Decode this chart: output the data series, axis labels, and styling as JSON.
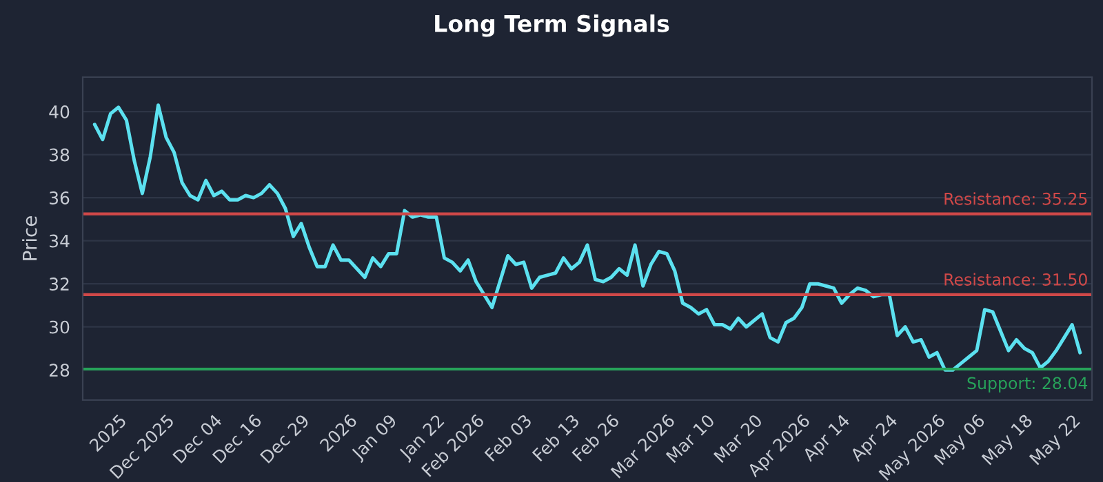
{
  "chart_data": {
    "type": "line",
    "title": "Long Term Signals",
    "ylabel": "Price",
    "series": [
      {
        "color": "#5ce1f0",
        "values": [
          39.4,
          38.7,
          39.9,
          40.2,
          39.6,
          37.7,
          36.2,
          37.9,
          40.3,
          38.8,
          38.1,
          36.7,
          36.1,
          35.9,
          36.8,
          36.1,
          36.3,
          35.9,
          35.9,
          36.1,
          36.0,
          36.2,
          36.6,
          36.2,
          35.5,
          34.2,
          34.8,
          33.7,
          32.8,
          32.8,
          33.8,
          33.1,
          33.1,
          32.7,
          32.3,
          33.2,
          32.8,
          33.4,
          33.4,
          35.4,
          35.1,
          35.2,
          35.1,
          35.1,
          33.2,
          33.0,
          32.6,
          33.1,
          32.1,
          31.5,
          30.9,
          32.1,
          33.3,
          32.9,
          33.0,
          31.8,
          32.3,
          32.4,
          32.5,
          33.2,
          32.7,
          33.0,
          33.8,
          32.2,
          32.1,
          32.3,
          32.7,
          32.4,
          33.8,
          31.9,
          32.9,
          33.5,
          33.4,
          32.6,
          31.1,
          30.9,
          30.6,
          30.8,
          30.1,
          30.1,
          29.9,
          30.4,
          30.0,
          30.3,
          30.6,
          29.5,
          29.3,
          30.2,
          30.4,
          30.9,
          32.0,
          32.0,
          31.9,
          31.8,
          31.1,
          31.5,
          31.8,
          31.7,
          31.4,
          31.5,
          31.5,
          29.6,
          30.0,
          29.3,
          29.4,
          28.6,
          28.8,
          28.0,
          28.0,
          28.3,
          28.6,
          28.9,
          30.8,
          30.7,
          29.8,
          28.9,
          29.4,
          29.0,
          28.8,
          28.1,
          28.4,
          28.9,
          29.5,
          30.1,
          28.8
        ]
      }
    ],
    "categories": [
      null,
      null,
      null,
      "2025",
      null,
      null,
      null,
      null,
      null,
      "Dec 2025",
      null,
      null,
      null,
      null,
      null,
      "Dec 04",
      null,
      null,
      null,
      null,
      "Dec 16",
      null,
      null,
      null,
      null,
      null,
      "Dec 29",
      null,
      null,
      null,
      null,
      null,
      "2026",
      null,
      null,
      null,
      null,
      "Jan 09",
      null,
      null,
      null,
      null,
      null,
      "Jan 22",
      null,
      null,
      null,
      null,
      "Feb 2026",
      null,
      null,
      null,
      null,
      null,
      "Feb 03",
      null,
      null,
      null,
      null,
      null,
      "Feb 13",
      null,
      null,
      null,
      null,
      "Feb 26",
      null,
      null,
      null,
      null,
      null,
      null,
      "Mar 2026",
      null,
      null,
      null,
      null,
      "Mar 10",
      null,
      null,
      null,
      null,
      null,
      "Mar 20",
      null,
      null,
      null,
      null,
      null,
      "Apr 2026",
      null,
      null,
      null,
      null,
      "Apr 14",
      null,
      null,
      null,
      null,
      null,
      "Apr 24",
      null,
      null,
      null,
      null,
      null,
      "May 2026",
      null,
      null,
      null,
      null,
      "May 06",
      null,
      null,
      null,
      null,
      null,
      "May 18",
      null,
      null,
      null,
      null,
      null,
      "May 22",
      null
    ],
    "ylim": [
      26.6,
      41.6
    ],
    "yticks": [
      28,
      30,
      32,
      34,
      36,
      38,
      40
    ],
    "grid": "y",
    "line_style": "solid",
    "ref_lines": [
      {
        "axis": "y",
        "value": 35.25,
        "label": "Resistance: 35.25",
        "color": "#d04848"
      },
      {
        "axis": "y",
        "value": 31.5,
        "label": "Resistance: 31.50",
        "color": "#d04848"
      },
      {
        "axis": "y",
        "value": 28.04,
        "label": "Support: 28.04",
        "color": "#27a35a"
      }
    ]
  }
}
